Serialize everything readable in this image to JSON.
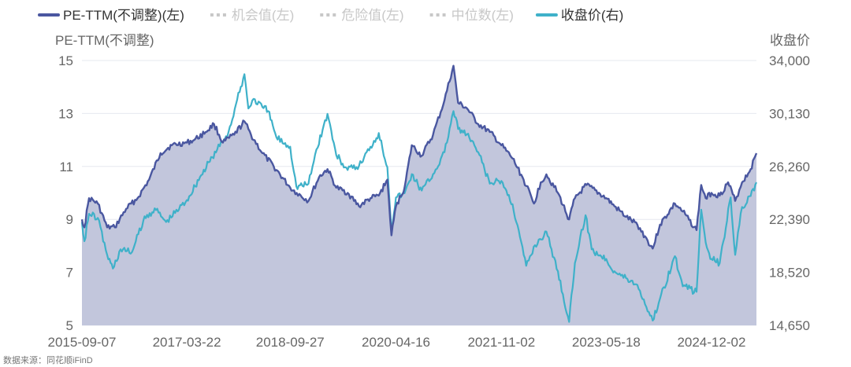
{
  "legend": [
    {
      "label": "PE-TTM(不调整)(左)",
      "style": "line",
      "color": "#4a57a0",
      "active": true
    },
    {
      "label": "机会值(左)",
      "style": "dots",
      "color": "#c8c8c8",
      "active": false
    },
    {
      "label": "危险值(左)",
      "style": "dots",
      "color": "#c8c8c8",
      "active": false
    },
    {
      "label": "中位数(左)",
      "style": "dots",
      "color": "#c8c8c8",
      "active": false
    },
    {
      "label": "收盘价(右)",
      "style": "line",
      "color": "#3fb1c9",
      "active": true
    }
  ],
  "source_text": "数据来源：同花顺iFinD",
  "chart_data": {
    "type": "line",
    "left_axis_title": "PE-TTM(不调整)",
    "right_axis_title": "收盘价",
    "left_ticks": [
      "15",
      "13",
      "11",
      "9",
      "7",
      "5"
    ],
    "right_ticks": [
      "34,000",
      "30,130",
      "26,260",
      "22,390",
      "18,520",
      "14,650"
    ],
    "x_ticks": [
      "2015-09-07",
      "2017-03-22",
      "2018-09-27",
      "2020-04-16",
      "2021-11-02",
      "2023-05-18",
      "2024-12-02"
    ],
    "ylim_left": [
      5,
      15
    ],
    "ylim_right": [
      14650,
      34000
    ],
    "x_range": [
      "2015-09-07",
      "2025-07-31"
    ],
    "grid": true,
    "legend_position": "top",
    "colors": {
      "pe": "#4a57a0",
      "pe_fill": "#bfc3da",
      "close": "#3fb1c9",
      "grid": "#e6e8ef"
    },
    "series": [
      {
        "name": "PE-TTM(不调整)(左)",
        "axis": "left",
        "points": [
          [
            "2015-09-07",
            9.0
          ],
          [
            "2015-09-20",
            8.7
          ],
          [
            "2015-10-15",
            9.8
          ],
          [
            "2015-12-01",
            9.6
          ],
          [
            "2016-01-20",
            8.7
          ],
          [
            "2016-03-01",
            8.7
          ],
          [
            "2016-05-01",
            9.4
          ],
          [
            "2016-07-01",
            9.8
          ],
          [
            "2016-09-01",
            10.5
          ],
          [
            "2016-11-01",
            11.5
          ],
          [
            "2017-01-01",
            11.8
          ],
          [
            "2017-03-22",
            11.9
          ],
          [
            "2017-05-01",
            12.0
          ],
          [
            "2017-07-01",
            12.3
          ],
          [
            "2017-08-15",
            12.6
          ],
          [
            "2017-10-01",
            11.9
          ],
          [
            "2017-12-01",
            12.2
          ],
          [
            "2018-01-25",
            12.7
          ],
          [
            "2018-03-01",
            12.2
          ],
          [
            "2018-05-01",
            11.5
          ],
          [
            "2018-07-01",
            11.0
          ],
          [
            "2018-09-27",
            10.2
          ],
          [
            "2018-11-01",
            10.0
          ],
          [
            "2019-01-03",
            9.7
          ],
          [
            "2019-03-01",
            10.6
          ],
          [
            "2019-04-15",
            10.9
          ],
          [
            "2019-06-01",
            10.2
          ],
          [
            "2019-08-01",
            10.0
          ],
          [
            "2019-10-01",
            9.5
          ],
          [
            "2019-12-01",
            9.8
          ],
          [
            "2020-01-15",
            9.9
          ],
          [
            "2020-03-01",
            10.5
          ],
          [
            "2020-03-23",
            8.4
          ],
          [
            "2020-04-16",
            9.5
          ],
          [
            "2020-06-01",
            10.2
          ],
          [
            "2020-07-10",
            11.8
          ],
          [
            "2020-09-01",
            11.4
          ],
          [
            "2020-11-01",
            12.2
          ],
          [
            "2021-01-01",
            13.5
          ],
          [
            "2021-02-18",
            14.8
          ],
          [
            "2021-03-15",
            13.4
          ],
          [
            "2021-05-01",
            13.2
          ],
          [
            "2021-07-01",
            12.6
          ],
          [
            "2021-09-01",
            12.3
          ],
          [
            "2021-11-02",
            11.8
          ],
          [
            "2022-01-01",
            11.3
          ],
          [
            "2022-03-01",
            10.5
          ],
          [
            "2022-04-26",
            9.6
          ],
          [
            "2022-06-01",
            10.4
          ],
          [
            "2022-07-01",
            10.7
          ],
          [
            "2022-09-01",
            10.0
          ],
          [
            "2022-10-31",
            9.0
          ],
          [
            "2022-12-01",
            9.8
          ],
          [
            "2023-02-01",
            10.3
          ],
          [
            "2023-05-18",
            9.8
          ],
          [
            "2023-07-01",
            9.5
          ],
          [
            "2023-09-01",
            9.1
          ],
          [
            "2023-11-01",
            8.8
          ],
          [
            "2024-01-22",
            7.9
          ],
          [
            "2024-03-01",
            8.8
          ],
          [
            "2024-05-20",
            9.6
          ],
          [
            "2024-07-01",
            9.3
          ],
          [
            "2024-09-13",
            8.6
          ],
          [
            "2024-10-08",
            10.3
          ],
          [
            "2024-11-01",
            9.8
          ],
          [
            "2024-12-02",
            10.0
          ],
          [
            "2025-01-15",
            9.9
          ],
          [
            "2025-03-01",
            10.4
          ],
          [
            "2025-04-08",
            9.7
          ],
          [
            "2025-05-15",
            10.4
          ],
          [
            "2025-06-30",
            10.9
          ],
          [
            "2025-07-31",
            11.5
          ]
        ]
      },
      {
        "name": "收盘价(右)",
        "axis": "right",
        "points": [
          [
            "2015-09-07",
            22200
          ],
          [
            "2015-09-20",
            20800
          ],
          [
            "2015-10-15",
            22800
          ],
          [
            "2015-12-01",
            22500
          ],
          [
            "2016-01-20",
            19800
          ],
          [
            "2016-02-20",
            18800
          ],
          [
            "2016-04-01",
            20200
          ],
          [
            "2016-06-01",
            20000
          ],
          [
            "2016-08-01",
            22300
          ],
          [
            "2016-10-01",
            23200
          ],
          [
            "2016-12-01",
            22200
          ],
          [
            "2017-03-22",
            23800
          ],
          [
            "2017-06-01",
            25500
          ],
          [
            "2017-09-01",
            27500
          ],
          [
            "2017-11-01",
            28800
          ],
          [
            "2018-01-25",
            33000
          ],
          [
            "2018-02-15",
            30500
          ],
          [
            "2018-03-15",
            31200
          ],
          [
            "2018-05-01",
            30600
          ],
          [
            "2018-06-01",
            30300
          ],
          [
            "2018-07-15",
            28400
          ],
          [
            "2018-09-27",
            27700
          ],
          [
            "2018-10-30",
            24800
          ],
          [
            "2019-01-03",
            25000
          ],
          [
            "2019-02-15",
            27500
          ],
          [
            "2019-04-15",
            30100
          ],
          [
            "2019-06-01",
            27100
          ],
          [
            "2019-08-01",
            26000
          ],
          [
            "2019-10-01",
            26300
          ],
          [
            "2019-12-01",
            27700
          ],
          [
            "2020-01-15",
            28700
          ],
          [
            "2020-03-01",
            26200
          ],
          [
            "2020-03-23",
            21700
          ],
          [
            "2020-04-16",
            24000
          ],
          [
            "2020-06-01",
            24300
          ],
          [
            "2020-07-10",
            25700
          ],
          [
            "2020-09-01",
            24500
          ],
          [
            "2020-11-01",
            25700
          ],
          [
            "2021-01-01",
            27300
          ],
          [
            "2021-02-18",
            30300
          ],
          [
            "2021-03-15",
            29000
          ],
          [
            "2021-05-01",
            28600
          ],
          [
            "2021-07-01",
            27300
          ],
          [
            "2021-09-01",
            25000
          ],
          [
            "2021-11-02",
            25200
          ],
          [
            "2022-01-01",
            23500
          ],
          [
            "2022-03-15",
            19000
          ],
          [
            "2022-05-01",
            20500
          ],
          [
            "2022-07-01",
            21500
          ],
          [
            "2022-09-01",
            18600
          ],
          [
            "2022-10-31",
            14900
          ],
          [
            "2022-12-01",
            19200
          ],
          [
            "2023-01-27",
            22700
          ],
          [
            "2023-03-01",
            20200
          ],
          [
            "2023-05-18",
            19500
          ],
          [
            "2023-07-01",
            18600
          ],
          [
            "2023-09-01",
            18100
          ],
          [
            "2023-11-01",
            17600
          ],
          [
            "2024-01-22",
            15000
          ],
          [
            "2024-03-01",
            16600
          ],
          [
            "2024-05-20",
            19700
          ],
          [
            "2024-07-01",
            17500
          ],
          [
            "2024-09-13",
            17100
          ],
          [
            "2024-10-08",
            23100
          ],
          [
            "2024-11-01",
            20700
          ],
          [
            "2024-12-02",
            19500
          ],
          [
            "2025-01-15",
            19200
          ],
          [
            "2025-03-15",
            24000
          ],
          [
            "2025-04-08",
            19800
          ],
          [
            "2025-05-15",
            23300
          ],
          [
            "2025-06-30",
            24100
          ],
          [
            "2025-07-31",
            25100
          ]
        ]
      }
    ]
  }
}
